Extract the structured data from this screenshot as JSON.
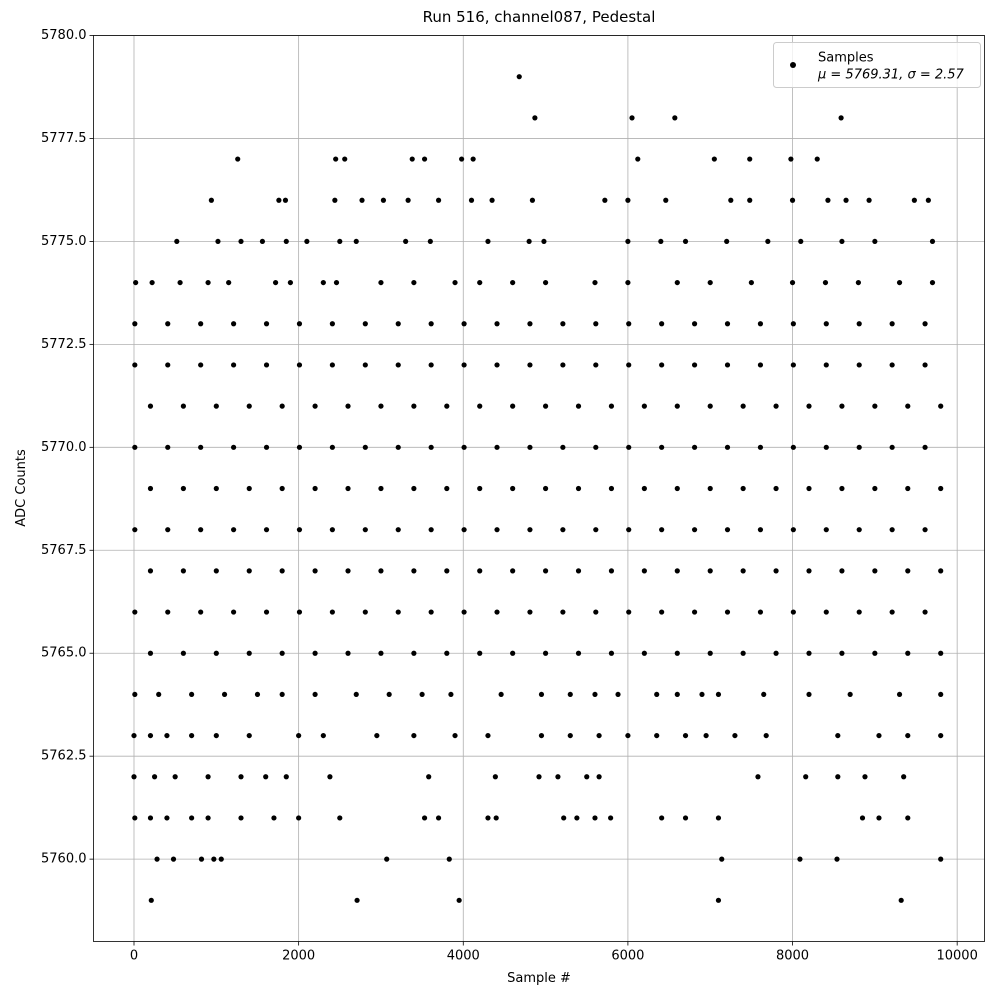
{
  "chart_data": {
    "type": "scatter",
    "title": "Run 516, channel087, Pedestal",
    "xlabel": "Sample #",
    "ylabel": "ADC Counts",
    "xlim": [
      -492,
      10332
    ],
    "ylim": [
      5758,
      5780
    ],
    "xticks": [
      0,
      2000,
      4000,
      6000,
      8000,
      10000
    ],
    "yticks": [
      {
        "value": 5760,
        "label": "5760.0"
      },
      {
        "value": 5762.5,
        "label": "5762.5"
      },
      {
        "value": 5765,
        "label": "5765.0"
      },
      {
        "value": 5767.5,
        "label": "5767.5"
      },
      {
        "value": 5770,
        "label": "5770.0"
      },
      {
        "value": 5772.5,
        "label": "5772.5"
      },
      {
        "value": 5775,
        "label": "5775.0"
      },
      {
        "value": 5777.5,
        "label": "5777.5"
      },
      {
        "value": 5780,
        "label": "5780.0"
      }
    ],
    "grid": true,
    "legend": "upper right",
    "legend_note": "μ = 5769.31, σ = 2.57",
    "series": [
      {
        "name": "Samples",
        "color": "#000000",
        "x": [
          210,
          2710,
          3950,
          7100,
          9320,
          280,
          480,
          820,
          970,
          1060,
          3070,
          3830,
          7140,
          8090,
          8540,
          9800,
          10,
          200,
          400,
          700,
          900,
          1300,
          1700,
          2000,
          2500,
          3530,
          3700,
          4300,
          4400,
          5220,
          5380,
          5600,
          5790,
          6410,
          6700,
          7100,
          8850,
          9050,
          9400,
          0,
          250,
          500,
          900,
          1300,
          1600,
          1850,
          2380,
          3580,
          4390,
          4920,
          5150,
          5500,
          5650,
          7580,
          8160,
          8550,
          8880,
          9350,
          0,
          200,
          400,
          700,
          1000,
          1400,
          2000,
          2300,
          2950,
          3400,
          3900,
          4300,
          4950,
          5300,
          5650,
          6000,
          6350,
          6700,
          6950,
          7300,
          7680,
          8550,
          9050,
          9400,
          9800,
          10,
          300,
          700,
          1100,
          1500,
          1800,
          2200,
          2700,
          3100,
          3500,
          3850,
          4460,
          4950,
          5300,
          5600,
          5880,
          6350,
          6600,
          6900,
          7100,
          7650,
          8200,
          8700,
          9300,
          9800,
          200,
          600,
          1000,
          1400,
          1800,
          2200,
          2600,
          3000,
          3400,
          3800,
          4200,
          4600,
          5000,
          5400,
          5800,
          6200,
          6600,
          7000,
          7400,
          7800,
          8200,
          8600,
          9000,
          9400,
          9800,
          10,
          410,
          810,
          1210,
          1610,
          2010,
          2410,
          2810,
          3210,
          3610,
          4010,
          4410,
          4810,
          5210,
          5610,
          6010,
          6410,
          6810,
          7210,
          7610,
          8010,
          8410,
          8810,
          9210,
          9610,
          200,
          600,
          1000,
          1400,
          1800,
          2200,
          2600,
          3000,
          3400,
          3800,
          4200,
          4600,
          5000,
          5400,
          5800,
          6200,
          6600,
          7000,
          7400,
          7800,
          8200,
          8600,
          9000,
          9400,
          9800,
          10,
          410,
          810,
          1210,
          1610,
          2010,
          2410,
          2810,
          3210,
          3610,
          4010,
          4410,
          4810,
          5210,
          5610,
          6010,
          6410,
          6810,
          7210,
          7610,
          8010,
          8410,
          8810,
          9210,
          9610,
          200,
          600,
          1000,
          1400,
          1800,
          2200,
          2600,
          3000,
          3400,
          3800,
          4200,
          4600,
          5000,
          5400,
          5800,
          6200,
          6600,
          7000,
          7400,
          7800,
          8200,
          8600,
          9000,
          9400,
          9800,
          10,
          410,
          810,
          1210,
          1610,
          2010,
          2410,
          2810,
          3210,
          3610,
          4010,
          4410,
          4810,
          5210,
          5610,
          6010,
          6410,
          6810,
          7210,
          7610,
          8010,
          8410,
          8810,
          9210,
          9610,
          200,
          600,
          1000,
          1400,
          1800,
          2200,
          2600,
          3000,
          3400,
          3800,
          4200,
          4600,
          5000,
          5400,
          5800,
          6200,
          6600,
          7000,
          7400,
          7800,
          8200,
          8600,
          9000,
          9400,
          9800,
          10,
          410,
          810,
          1210,
          1610,
          2010,
          2410,
          2810,
          3210,
          3610,
          4010,
          4410,
          4810,
          5210,
          5610,
          6010,
          6410,
          6810,
          7210,
          7610,
          8010,
          8410,
          8810,
          9210,
          9610,
          10,
          410,
          810,
          1210,
          1610,
          2010,
          2410,
          2810,
          3210,
          3610,
          4010,
          4410,
          4810,
          5210,
          5610,
          6010,
          6410,
          6810,
          7210,
          7610,
          8010,
          8410,
          8810,
          9210,
          9610,
          20,
          220,
          560,
          900,
          1150,
          1720,
          1900,
          2300,
          2460,
          3000,
          3400,
          3900,
          4200,
          4600,
          5000,
          5600,
          6000,
          6600,
          7000,
          7500,
          8000,
          8400,
          8800,
          9300,
          9700,
          520,
          1020,
          1300,
          1560,
          1850,
          2100,
          2500,
          2700,
          3300,
          3600,
          4300,
          4800,
          4980,
          6000,
          6400,
          6700,
          7200,
          7700,
          8100,
          8600,
          9000,
          9700,
          940,
          1760,
          1840,
          2440,
          2770,
          3030,
          3330,
          3700,
          4100,
          4350,
          4840,
          5720,
          6000,
          6460,
          7250,
          7480,
          8000,
          8430,
          8650,
          8930,
          9480,
          9650,
          1260,
          2450,
          2560,
          3380,
          3530,
          3980,
          4120,
          6120,
          7050,
          7480,
          7980,
          8300,
          4870,
          6050,
          6570,
          8590,
          4680
        ],
        "values": [
          5759,
          5759,
          5759,
          5759,
          5759,
          5760,
          5760,
          5760,
          5760,
          5760,
          5760,
          5760,
          5760,
          5760,
          5760,
          5760,
          5761,
          5761,
          5761,
          5761,
          5761,
          5761,
          5761,
          5761,
          5761,
          5761,
          5761,
          5761,
          5761,
          5761,
          5761,
          5761,
          5761,
          5761,
          5761,
          5761,
          5761,
          5761,
          5761,
          5762,
          5762,
          5762,
          5762,
          5762,
          5762,
          5762,
          5762,
          5762,
          5762,
          5762,
          5762,
          5762,
          5762,
          5762,
          5762,
          5762,
          5762,
          5762,
          5763,
          5763,
          5763,
          5763,
          5763,
          5763,
          5763,
          5763,
          5763,
          5763,
          5763,
          5763,
          5763,
          5763,
          5763,
          5763,
          5763,
          5763,
          5763,
          5763,
          5763,
          5763,
          5763,
          5763,
          5763,
          5764,
          5764,
          5764,
          5764,
          5764,
          5764,
          5764,
          5764,
          5764,
          5764,
          5764,
          5764,
          5764,
          5764,
          5764,
          5764,
          5764,
          5764,
          5764,
          5764,
          5764,
          5764,
          5764,
          5764,
          5764,
          5765,
          5765,
          5765,
          5765,
          5765,
          5765,
          5765,
          5765,
          5765,
          5765,
          5765,
          5765,
          5765,
          5765,
          5765,
          5765,
          5765,
          5765,
          5765,
          5765,
          5765,
          5765,
          5765,
          5765,
          5765,
          5766,
          5766,
          5766,
          5766,
          5766,
          5766,
          5766,
          5766,
          5766,
          5766,
          5766,
          5766,
          5766,
          5766,
          5766,
          5766,
          5766,
          5766,
          5766,
          5766,
          5766,
          5766,
          5766,
          5766,
          5766,
          5767,
          5767,
          5767,
          5767,
          5767,
          5767,
          5767,
          5767,
          5767,
          5767,
          5767,
          5767,
          5767,
          5767,
          5767,
          5767,
          5767,
          5767,
          5767,
          5767,
          5767,
          5767,
          5767,
          5767,
          5767,
          5768,
          5768,
          5768,
          5768,
          5768,
          5768,
          5768,
          5768,
          5768,
          5768,
          5768,
          5768,
          5768,
          5768,
          5768,
          5768,
          5768,
          5768,
          5768,
          5768,
          5768,
          5768,
          5768,
          5768,
          5768,
          5769,
          5769,
          5769,
          5769,
          5769,
          5769,
          5769,
          5769,
          5769,
          5769,
          5769,
          5769,
          5769,
          5769,
          5769,
          5769,
          5769,
          5769,
          5769,
          5769,
          5769,
          5769,
          5769,
          5769,
          5769,
          5770,
          5770,
          5770,
          5770,
          5770,
          5770,
          5770,
          5770,
          5770,
          5770,
          5770,
          5770,
          5770,
          5770,
          5770,
          5770,
          5770,
          5770,
          5770,
          5770,
          5770,
          5770,
          5770,
          5770,
          5770,
          5771,
          5771,
          5771,
          5771,
          5771,
          5771,
          5771,
          5771,
          5771,
          5771,
          5771,
          5771,
          5771,
          5771,
          5771,
          5771,
          5771,
          5771,
          5771,
          5771,
          5771,
          5771,
          5771,
          5771,
          5771,
          5772,
          5772,
          5772,
          5772,
          5772,
          5772,
          5772,
          5772,
          5772,
          5772,
          5772,
          5772,
          5772,
          5772,
          5772,
          5772,
          5772,
          5772,
          5772,
          5772,
          5772,
          5772,
          5772,
          5772,
          5772,
          5773,
          5773,
          5773,
          5773,
          5773,
          5773,
          5773,
          5773,
          5773,
          5773,
          5773,
          5773,
          5773,
          5773,
          5773,
          5773,
          5773,
          5773,
          5773,
          5773,
          5773,
          5773,
          5773,
          5773,
          5773,
          5774,
          5774,
          5774,
          5774,
          5774,
          5774,
          5774,
          5774,
          5774,
          5774,
          5774,
          5774,
          5774,
          5774,
          5774,
          5774,
          5774,
          5774,
          5774,
          5774,
          5774,
          5774,
          5774,
          5774,
          5774,
          5775,
          5775,
          5775,
          5775,
          5775,
          5775,
          5775,
          5775,
          5775,
          5775,
          5775,
          5775,
          5775,
          5775,
          5775,
          5775,
          5775,
          5775,
          5775,
          5775,
          5775,
          5775,
          5776,
          5776,
          5776,
          5776,
          5776,
          5776,
          5776,
          5776,
          5776,
          5776,
          5776,
          5776,
          5776,
          5776,
          5776,
          5776,
          5776,
          5776,
          5776,
          5776,
          5776,
          5776,
          5777,
          5777,
          5777,
          5777,
          5777,
          5777,
          5777,
          5777,
          5777,
          5777,
          5777,
          5777,
          5778,
          5778,
          5778,
          5778,
          5779
        ]
      }
    ]
  }
}
